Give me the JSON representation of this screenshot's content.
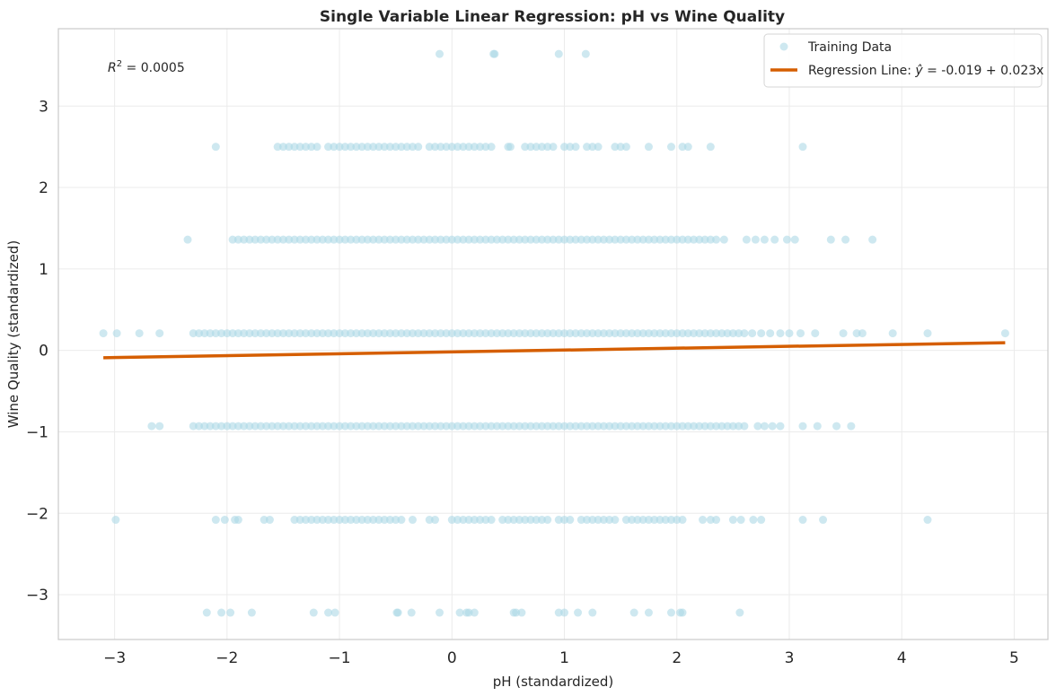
{
  "chart_data": {
    "type": "scatter",
    "title": "Single Variable Linear Regression: pH vs Wine Quality",
    "xlabel": "pH (standardized)",
    "ylabel": "Wine Quality (standardized)",
    "xlim": [
      -3.5,
      5.3
    ],
    "ylim": [
      -3.55,
      3.95
    ],
    "xticks": [
      -3,
      -2,
      -1,
      0,
      1,
      2,
      3,
      4,
      5
    ],
    "yticks": [
      -3,
      -2,
      -1,
      0,
      1,
      2,
      3
    ],
    "xtick_labels": [
      "−3",
      "−2",
      "−1",
      "0",
      "1",
      "2",
      "3",
      "4",
      "5"
    ],
    "ytick_labels": [
      "−3",
      "−2",
      "−1",
      "0",
      "1",
      "2",
      "3"
    ],
    "grid": true,
    "legend_position": "top-right",
    "annotation": {
      "prefix": "R",
      "sup": "2",
      "value": " = 0.0005"
    },
    "series": [
      {
        "name": "Training Data",
        "kind": "scatter",
        "color": "#add8e6",
        "levels": [
          {
            "y": 3.64,
            "x": [
              -0.11,
              0.37,
              0.38,
              0.95,
              1.19
            ]
          },
          {
            "y": 2.5,
            "x": [
              -2.1,
              -1.55,
              -1.5,
              -1.45,
              -1.4,
              -1.35,
              -1.3,
              -1.25,
              -1.2,
              -1.1,
              -1.05,
              -1.0,
              -0.95,
              -0.9,
              -0.85,
              -0.8,
              -0.75,
              -0.7,
              -0.65,
              -0.6,
              -0.55,
              -0.5,
              -0.45,
              -0.4,
              -0.35,
              -0.3,
              -0.2,
              -0.15,
              -0.1,
              -0.05,
              0.0,
              0.05,
              0.1,
              0.15,
              0.2,
              0.25,
              0.3,
              0.35,
              0.5,
              0.52,
              0.65,
              0.7,
              0.75,
              0.8,
              0.85,
              0.9,
              1.0,
              1.05,
              1.1,
              1.2,
              1.25,
              1.3,
              1.45,
              1.5,
              1.55,
              1.75,
              1.95,
              2.05,
              2.1,
              2.3,
              3.12
            ]
          },
          {
            "y": 1.36,
            "x": [
              -2.35,
              -1.95,
              -1.9,
              -1.85,
              -1.8,
              -1.75,
              -1.7,
              -1.65,
              -1.6,
              -1.55,
              -1.5,
              -1.45,
              -1.4,
              -1.35,
              -1.3,
              -1.25,
              -1.2,
              -1.15,
              -1.1,
              -1.05,
              -1.0,
              -0.95,
              -0.9,
              -0.85,
              -0.8,
              -0.75,
              -0.7,
              -0.65,
              -0.6,
              -0.55,
              -0.5,
              -0.45,
              -0.4,
              -0.35,
              -0.3,
              -0.25,
              -0.2,
              -0.15,
              -0.1,
              -0.05,
              0.0,
              0.05,
              0.1,
              0.15,
              0.2,
              0.25,
              0.3,
              0.35,
              0.4,
              0.45,
              0.5,
              0.55,
              0.6,
              0.65,
              0.7,
              0.75,
              0.8,
              0.85,
              0.9,
              0.95,
              1.0,
              1.05,
              1.1,
              1.15,
              1.2,
              1.25,
              1.3,
              1.35,
              1.4,
              1.45,
              1.5,
              1.55,
              1.6,
              1.65,
              1.7,
              1.75,
              1.8,
              1.85,
              1.9,
              1.95,
              2.0,
              2.05,
              2.1,
              2.15,
              2.2,
              2.25,
              2.3,
              2.35,
              2.42,
              2.62,
              2.7,
              2.78,
              2.87,
              2.98,
              3.05,
              3.37,
              3.5,
              3.74
            ]
          },
          {
            "y": 0.21,
            "x": [
              -3.1,
              -2.98,
              -2.78,
              -2.6,
              -2.3,
              -2.25,
              -2.2,
              -2.15,
              -2.1,
              -2.05,
              -2.0,
              -1.95,
              -1.9,
              -1.85,
              -1.8,
              -1.75,
              -1.7,
              -1.65,
              -1.6,
              -1.55,
              -1.5,
              -1.45,
              -1.4,
              -1.35,
              -1.3,
              -1.25,
              -1.2,
              -1.15,
              -1.1,
              -1.05,
              -1.0,
              -0.95,
              -0.9,
              -0.85,
              -0.8,
              -0.75,
              -0.7,
              -0.65,
              -0.6,
              -0.55,
              -0.5,
              -0.45,
              -0.4,
              -0.35,
              -0.3,
              -0.25,
              -0.2,
              -0.15,
              -0.1,
              -0.05,
              0.0,
              0.05,
              0.1,
              0.15,
              0.2,
              0.25,
              0.3,
              0.35,
              0.4,
              0.45,
              0.5,
              0.55,
              0.6,
              0.65,
              0.7,
              0.75,
              0.8,
              0.85,
              0.9,
              0.95,
              1.0,
              1.05,
              1.1,
              1.15,
              1.2,
              1.25,
              1.3,
              1.35,
              1.4,
              1.45,
              1.5,
              1.55,
              1.6,
              1.65,
              1.7,
              1.75,
              1.8,
              1.85,
              1.9,
              1.95,
              2.0,
              2.05,
              2.1,
              2.15,
              2.2,
              2.25,
              2.3,
              2.35,
              2.4,
              2.45,
              2.5,
              2.55,
              2.6,
              2.67,
              2.75,
              2.83,
              2.92,
              3.0,
              3.1,
              3.23,
              3.48,
              3.6,
              3.65,
              3.92,
              4.23,
              4.92
            ]
          },
          {
            "y": -0.93,
            "x": [
              -2.67,
              -2.6,
              -2.3,
              -2.25,
              -2.2,
              -2.15,
              -2.1,
              -2.05,
              -2.0,
              -1.95,
              -1.9,
              -1.85,
              -1.8,
              -1.75,
              -1.7,
              -1.65,
              -1.6,
              -1.55,
              -1.5,
              -1.45,
              -1.4,
              -1.35,
              -1.3,
              -1.25,
              -1.2,
              -1.15,
              -1.1,
              -1.05,
              -1.0,
              -0.95,
              -0.9,
              -0.85,
              -0.8,
              -0.75,
              -0.7,
              -0.65,
              -0.6,
              -0.55,
              -0.5,
              -0.45,
              -0.4,
              -0.35,
              -0.3,
              -0.25,
              -0.2,
              -0.15,
              -0.1,
              -0.05,
              0.0,
              0.05,
              0.1,
              0.15,
              0.2,
              0.25,
              0.3,
              0.35,
              0.4,
              0.45,
              0.5,
              0.55,
              0.6,
              0.65,
              0.7,
              0.75,
              0.8,
              0.85,
              0.9,
              0.95,
              1.0,
              1.05,
              1.1,
              1.15,
              1.2,
              1.25,
              1.3,
              1.35,
              1.4,
              1.45,
              1.5,
              1.55,
              1.6,
              1.65,
              1.7,
              1.75,
              1.8,
              1.85,
              1.9,
              1.95,
              2.0,
              2.05,
              2.1,
              2.15,
              2.2,
              2.25,
              2.3,
              2.35,
              2.4,
              2.45,
              2.5,
              2.55,
              2.6,
              2.72,
              2.78,
              2.85,
              2.92,
              3.12,
              3.25,
              3.42,
              3.55
            ]
          },
          {
            "y": -2.08,
            "x": [
              -2.99,
              -2.1,
              -2.02,
              -1.93,
              -1.9,
              -1.67,
              -1.62,
              -1.4,
              -1.35,
              -1.3,
              -1.25,
              -1.2,
              -1.15,
              -1.1,
              -1.05,
              -1.0,
              -0.95,
              -0.9,
              -0.85,
              -0.8,
              -0.75,
              -0.7,
              -0.65,
              -0.6,
              -0.55,
              -0.5,
              -0.45,
              -0.35,
              -0.2,
              -0.15,
              0.0,
              0.05,
              0.1,
              0.15,
              0.2,
              0.25,
              0.3,
              0.35,
              0.45,
              0.5,
              0.55,
              0.6,
              0.65,
              0.7,
              0.75,
              0.8,
              0.85,
              0.95,
              1.0,
              1.05,
              1.15,
              1.2,
              1.25,
              1.3,
              1.35,
              1.4,
              1.45,
              1.55,
              1.6,
              1.65,
              1.7,
              1.75,
              1.8,
              1.85,
              1.9,
              1.95,
              2.0,
              2.05,
              2.23,
              2.3,
              2.35,
              2.5,
              2.57,
              2.68,
              2.75,
              3.12,
              3.3,
              4.23
            ]
          },
          {
            "y": -3.22,
            "x": [
              -2.18,
              -2.05,
              -1.97,
              -1.78,
              -1.23,
              -1.1,
              -1.04,
              -0.49,
              -0.48,
              -0.36,
              -0.11,
              0.07,
              0.13,
              0.15,
              0.2,
              0.55,
              0.57,
              0.62,
              0.95,
              1.0,
              1.12,
              1.25,
              1.62,
              1.75,
              1.95,
              2.03,
              2.05,
              2.56
            ]
          }
        ]
      },
      {
        "name": "Regression Line: ŷ = -0.019 + 0.023x",
        "legend_prefix": "Regression Line: ",
        "legend_yhat": "ŷ",
        "legend_suffix": " = -0.019 + 0.023x",
        "kind": "line",
        "color": "#d55e00",
        "intercept": -0.019,
        "slope": 0.023,
        "x_range": [
          -3.1,
          4.92
        ]
      }
    ]
  }
}
